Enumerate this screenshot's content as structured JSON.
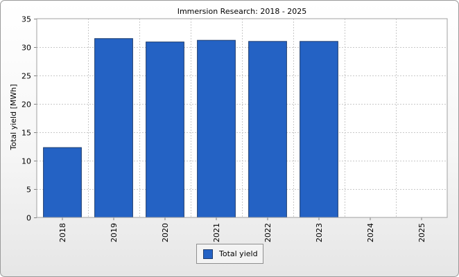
{
  "chart_data": {
    "type": "bar",
    "title": "Immersion Research: 2018 - 2025",
    "xlabel": "",
    "ylabel": "Total yield [MWh]",
    "categories": [
      "2018",
      "2019",
      "2020",
      "2021",
      "2022",
      "2023",
      "2024",
      "2025"
    ],
    "series": [
      {
        "name": "Total yield",
        "values": [
          12.3,
          31.5,
          30.9,
          31.2,
          31.0,
          31.0,
          null,
          null
        ]
      }
    ],
    "ylim": [
      0,
      35
    ],
    "yticks": [
      "0",
      "5",
      "10",
      "15",
      "20",
      "25",
      "30",
      "35"
    ],
    "grid": true,
    "legend_position": "bottom",
    "colors": {
      "bar": "#2462c4",
      "bar_border": "#1f3d6e",
      "plot_bg": "#ffffff",
      "grid": "#c8c8c8"
    }
  }
}
